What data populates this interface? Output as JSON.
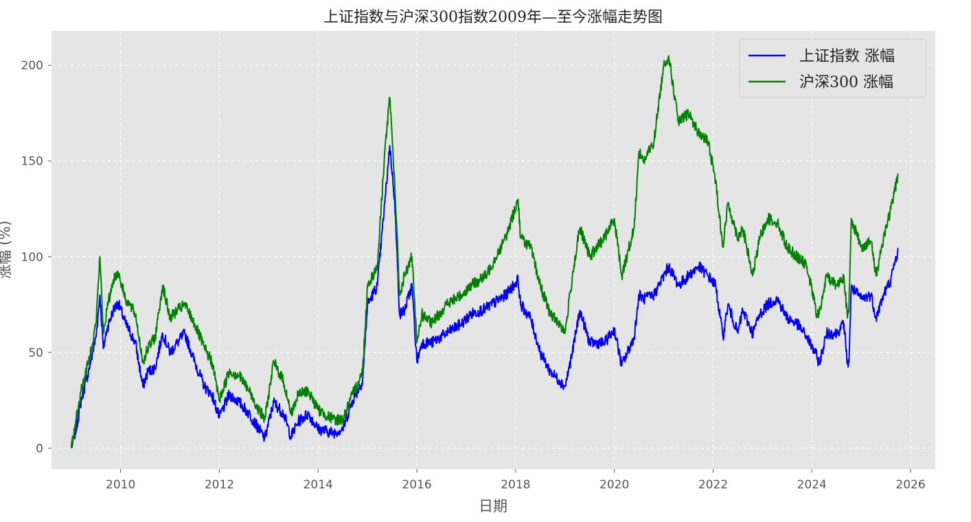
{
  "chart_data": {
    "type": "line",
    "title": "上证指数与沪深300指数2009年—至今涨幅走势图",
    "xlabel": "日期",
    "ylabel": "涨幅 (%)",
    "xlim": [
      2008.6,
      2026.5
    ],
    "ylim": [
      -11,
      218
    ],
    "x_ticks": [
      2010,
      2012,
      2014,
      2016,
      2018,
      2020,
      2022,
      2024,
      2026
    ],
    "x_tick_labels": [
      "2010",
      "2012",
      "2014",
      "2016",
      "2018",
      "2020",
      "2022",
      "2024",
      "2026"
    ],
    "y_ticks": [
      0,
      50,
      100,
      150,
      200
    ],
    "y_tick_labels": [
      "0",
      "50",
      "100",
      "150",
      "200"
    ],
    "grid": true,
    "legend_position": "top-right",
    "series": [
      {
        "name": "上证指数 涨幅",
        "color": "#0000ff",
        "x": [
          2009.0,
          2009.1,
          2009.2,
          2009.35,
          2009.5,
          2009.58,
          2009.65,
          2009.72,
          2009.85,
          2009.95,
          2010.1,
          2010.3,
          2010.45,
          2010.55,
          2010.7,
          2010.85,
          2011.0,
          2011.15,
          2011.3,
          2011.5,
          2011.7,
          2011.85,
          2012.0,
          2012.2,
          2012.4,
          2012.6,
          2012.8,
          2012.92,
          2013.1,
          2013.3,
          2013.45,
          2013.6,
          2013.8,
          2014.0,
          2014.3,
          2014.5,
          2014.7,
          2014.9,
          2015.0,
          2015.2,
          2015.35,
          2015.45,
          2015.55,
          2015.65,
          2015.75,
          2015.9,
          2016.0,
          2016.1,
          2016.3,
          2016.6,
          2016.9,
          2017.1,
          2017.4,
          2017.8,
          2018.05,
          2018.1,
          2018.3,
          2018.5,
          2018.7,
          2018.9,
          2019.0,
          2019.15,
          2019.3,
          2019.5,
          2019.8,
          2020.0,
          2020.15,
          2020.4,
          2020.5,
          2020.6,
          2020.8,
          2021.0,
          2021.1,
          2021.3,
          2021.5,
          2021.7,
          2021.9,
          2022.05,
          2022.2,
          2022.3,
          2022.5,
          2022.6,
          2022.8,
          2022.95,
          2023.1,
          2023.3,
          2023.5,
          2023.7,
          2023.9,
          2024.1,
          2024.15,
          2024.3,
          2024.5,
          2024.65,
          2024.72,
          2024.75,
          2024.8,
          2025.0,
          2025.2,
          2025.3,
          2025.45,
          2025.6,
          2025.75
        ],
        "values": [
          0,
          10,
          25,
          40,
          58,
          80,
          52,
          62,
          72,
          76,
          65,
          55,
          32,
          40,
          42,
          60,
          50,
          55,
          60,
          45,
          32,
          28,
          16,
          28,
          24,
          18,
          10,
          5,
          24,
          18,
          6,
          14,
          18,
          10,
          8,
          10,
          25,
          35,
          75,
          85,
          128,
          158,
          130,
          70,
          72,
          85,
          45,
          55,
          55,
          60,
          65,
          70,
          73,
          80,
          88,
          75,
          68,
          50,
          40,
          35,
          32,
          50,
          72,
          55,
          55,
          62,
          43,
          58,
          80,
          78,
          80,
          90,
          95,
          85,
          90,
          95,
          90,
          85,
          58,
          75,
          60,
          72,
          60,
          70,
          75,
          78,
          68,
          65,
          58,
          48,
          44,
          60,
          60,
          65,
          44,
          45,
          84,
          78,
          80,
          68,
          80,
          88,
          104
        ]
      },
      {
        "name": "沪深300 涨幅",
        "color": "#008000",
        "x": [
          2009.0,
          2009.1,
          2009.2,
          2009.35,
          2009.5,
          2009.58,
          2009.65,
          2009.72,
          2009.85,
          2009.95,
          2010.1,
          2010.3,
          2010.45,
          2010.55,
          2010.7,
          2010.85,
          2011.0,
          2011.15,
          2011.3,
          2011.5,
          2011.7,
          2011.85,
          2012.0,
          2012.2,
          2012.4,
          2012.6,
          2012.8,
          2012.92,
          2013.1,
          2013.3,
          2013.45,
          2013.6,
          2013.8,
          2014.0,
          2014.3,
          2014.5,
          2014.7,
          2014.9,
          2015.0,
          2015.2,
          2015.35,
          2015.45,
          2015.55,
          2015.65,
          2015.75,
          2015.9,
          2016.0,
          2016.1,
          2016.3,
          2016.6,
          2016.9,
          2017.1,
          2017.4,
          2017.8,
          2018.05,
          2018.1,
          2018.3,
          2018.5,
          2018.7,
          2018.9,
          2019.0,
          2019.15,
          2019.3,
          2019.5,
          2019.8,
          2020.0,
          2020.15,
          2020.4,
          2020.5,
          2020.6,
          2020.8,
          2021.0,
          2021.1,
          2021.3,
          2021.5,
          2021.7,
          2021.9,
          2022.05,
          2022.2,
          2022.3,
          2022.5,
          2022.6,
          2022.8,
          2022.95,
          2023.1,
          2023.3,
          2023.5,
          2023.7,
          2023.9,
          2024.1,
          2024.15,
          2024.3,
          2024.5,
          2024.65,
          2024.72,
          2024.75,
          2024.8,
          2025.0,
          2025.2,
          2025.3,
          2025.45,
          2025.6,
          2025.75
        ],
        "values": [
          0,
          15,
          30,
          45,
          65,
          100,
          60,
          72,
          88,
          92,
          78,
          70,
          45,
          52,
          58,
          85,
          68,
          72,
          75,
          65,
          52,
          45,
          25,
          40,
          38,
          30,
          20,
          15,
          45,
          35,
          18,
          28,
          30,
          20,
          15,
          15,
          28,
          40,
          85,
          95,
          155,
          183,
          140,
          80,
          90,
          100,
          55,
          70,
          65,
          75,
          80,
          85,
          90,
          110,
          130,
          110,
          105,
          85,
          70,
          65,
          60,
          90,
          115,
          100,
          110,
          120,
          90,
          115,
          155,
          150,
          160,
          200,
          205,
          170,
          175,
          165,
          160,
          140,
          105,
          128,
          110,
          115,
          90,
          110,
          120,
          118,
          105,
          100,
          95,
          70,
          70,
          90,
          85,
          90,
          68,
          72,
          120,
          105,
          108,
          90,
          110,
          125,
          143
        ]
      }
    ]
  }
}
